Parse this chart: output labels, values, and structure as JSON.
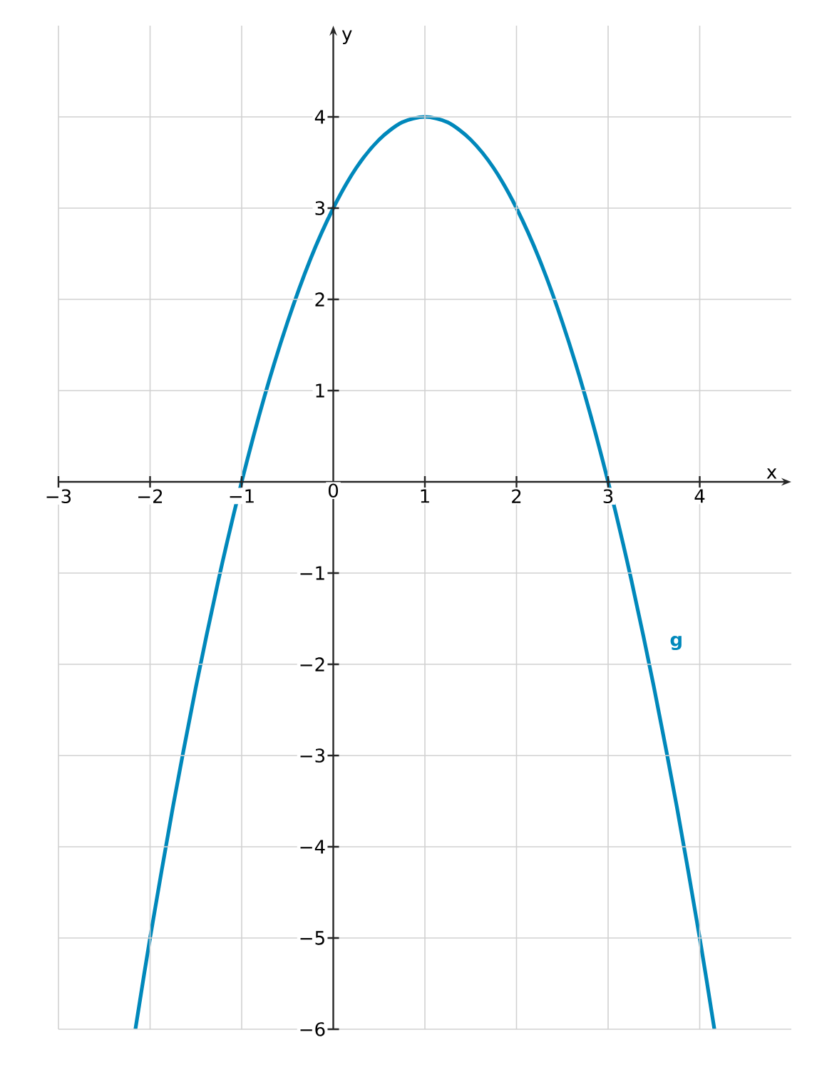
{
  "chart_data": {
    "type": "line",
    "xlabel": "x",
    "ylabel": "y",
    "x": [
      -2.16,
      -2,
      -1.75,
      -1.5,
      -1.25,
      -1,
      -0.75,
      -0.5,
      -0.25,
      0,
      0.25,
      0.5,
      0.75,
      1,
      1.25,
      1.5,
      1.75,
      2,
      2.25,
      2.5,
      2.75,
      3,
      3.25,
      3.5,
      3.75,
      4,
      4.16
    ],
    "series": [
      {
        "name": "g",
        "color": "#0088bb",
        "values": [
          -6,
          -5,
          -3.56,
          -2.25,
          -1.06,
          0,
          0.94,
          1.75,
          2.44,
          3,
          3.44,
          3.75,
          3.94,
          4,
          3.94,
          3.75,
          3.44,
          3,
          2.44,
          1.75,
          0.94,
          0,
          -1.06,
          -2.25,
          -3.56,
          -5,
          -6
        ]
      }
    ],
    "xlim": [
      -3,
      5
    ],
    "ylim": [
      -6,
      5
    ],
    "xticks": [
      {
        "value": -3,
        "label": "−3"
      },
      {
        "value": -2,
        "label": "−2"
      },
      {
        "value": -1,
        "label": "−1"
      },
      0,
      1,
      2,
      3,
      4
    ],
    "yticks": [
      {
        "value": -6,
        "label": "−6"
      },
      {
        "value": -5,
        "label": "−5"
      },
      {
        "value": -4,
        "label": "−4"
      },
      {
        "value": -3,
        "label": "−3"
      },
      {
        "value": -2,
        "label": "−2"
      },
      {
        "value": -1,
        "label": "−1"
      },
      1,
      2,
      3,
      4
    ],
    "grid": true,
    "legend": false,
    "marker": "none",
    "line_style": "solid"
  }
}
